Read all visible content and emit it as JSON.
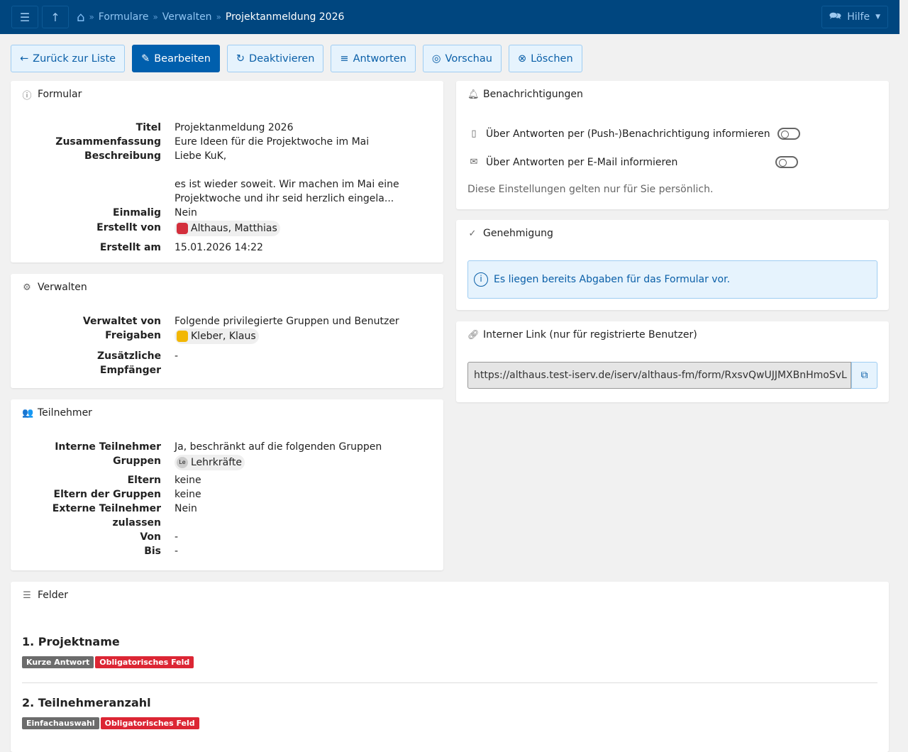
{
  "header": {
    "breadcrumbs": [
      "Formulare",
      "Verwalten"
    ],
    "current": "Projektanmeldung 2026",
    "help": "Hilfe"
  },
  "toolbar": {
    "back": "Zurück zur Liste",
    "edit": "Bearbeiten",
    "deactivate": "Deaktivieren",
    "answers": "Antworten",
    "preview": "Vorschau",
    "delete": "Löschen"
  },
  "formular": {
    "title": "Formular",
    "rows": [
      {
        "k": "Titel",
        "v": "Projektanmeldung 2026"
      },
      {
        "k": "Zusammenfassung",
        "v": "Eure Ideen für die Projektwoche im Mai"
      },
      {
        "k": "Beschreibung",
        "v": "Liebe KuK,",
        "v2": "es ist wieder soweit. Wir machen im Mai eine Projektwoche und ihr seid herzlich eingela..."
      },
      {
        "k": "Einmalig",
        "v": "Nein"
      },
      {
        "k": "Erstellt von",
        "v": "Althaus, Matthias"
      },
      {
        "k": "Erstellt am",
        "v": "15.01.2026 14:22"
      }
    ]
  },
  "verwalten": {
    "title": "Verwalten",
    "rows": [
      {
        "k": "Verwaltet von",
        "v": "Folgende privilegierte Gruppen und Benutzer"
      },
      {
        "k": "Freigaben",
        "v": "Kleber, Klaus"
      },
      {
        "k": "Zusätzliche Empfänger",
        "v": "-"
      }
    ]
  },
  "teilnehmer": {
    "title": "Teilnehmer",
    "rows": [
      {
        "k": "Interne Teilnehmer",
        "v": "Ja, beschränkt auf die folgenden Gruppen"
      },
      {
        "k": "Gruppen",
        "v": "Lehrkräfte",
        "avatar": "Le"
      },
      {
        "k": "Eltern",
        "v": "keine"
      },
      {
        "k": "Eltern der Gruppen",
        "v": "keine"
      },
      {
        "k": "Externe Teilnehmer zulassen",
        "v": "Nein"
      },
      {
        "k": "Von",
        "v": "-"
      },
      {
        "k": "Bis",
        "v": "-"
      }
    ]
  },
  "notifications": {
    "title": "Benachrichtigungen",
    "push": "Über Antworten per (Push-)Benachrichtigung informieren",
    "push_on": false,
    "mail": "Über Antworten per E-Mail informieren",
    "mail_on": false,
    "note": "Diese Einstellungen gelten nur für Sie persönlich."
  },
  "approval": {
    "title": "Genehmigung",
    "info": "Es liegen bereits Abgaben für das Formular vor."
  },
  "link": {
    "title": "Interner Link (nur für registrierte Benutzer)",
    "url": "https://althaus.test-iserv.de/iserv/althaus-fm/form/RxsvQwUJJMXBnHmoSvL"
  },
  "fields": {
    "title": "Felder",
    "items": [
      {
        "name": "1. Projektname",
        "type": "Kurze Antwort",
        "required": "Obligatorisches Feld"
      },
      {
        "name": "2. Teilnehmeranzahl",
        "type": "Einfachauswahl",
        "required": "Obligatorisches Feld"
      }
    ]
  }
}
